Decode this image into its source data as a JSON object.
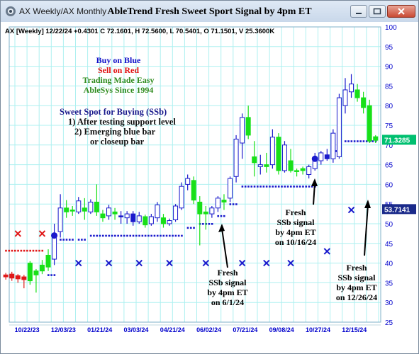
{
  "window": {
    "title": "AX Weekly/AX Monthly",
    "chart_title": "AbleTrend Fresh Sweet Sport Signal by 4pm ET"
  },
  "header_info": "AX [Weekly] 12/22/24 +0.4301 C 72.1601, H 72.5600, L 70.5401, O 71.1501, V 25.3600K",
  "legend_lines": [
    {
      "text": "Buy on Blue",
      "color": "#1010c8"
    },
    {
      "text": "Sell on Red",
      "color": "#e01010"
    },
    {
      "text": "Trading Made Easy",
      "color": "#2e8b1e"
    },
    {
      "text": "AbleSys Since 1994",
      "color": "#2e8b1e"
    }
  ],
  "sweet_spot": {
    "title": "Sweet Spot for Buying (SSb)",
    "lines": [
      "1) After testing support level",
      "2) Emerging blue bar",
      "or closeup bar"
    ]
  },
  "annotations": [
    {
      "lines": [
        "Fresh",
        "SSb signal",
        "by 4pm ET",
        "on 6/1/24"
      ],
      "arrow_to": {
        "x": 31,
        "y": 51
      }
    },
    {
      "lines": [
        "Fresh",
        "SSb signal",
        "by 4pm ET",
        "on 10/16/24"
      ],
      "arrow_to": {
        "x": 56,
        "y": 61
      }
    },
    {
      "lines": [
        "Fresh",
        "SSb signal",
        "by 4pm ET",
        "on 12/26/24"
      ],
      "arrow_to": {
        "x": 67,
        "y": 57
      }
    }
  ],
  "chart_data": {
    "type": "candlestick",
    "ylim": [
      25,
      100
    ],
    "y_ticks": [
      25,
      30,
      35,
      40,
      45,
      50,
      55,
      60,
      65,
      70,
      75,
      80,
      85,
      90,
      95,
      100
    ],
    "x_ticks": [
      {
        "x": 2,
        "label": "10/22/23"
      },
      {
        "x": 8,
        "label": "12/03/23"
      },
      {
        "x": 14,
        "label": "01/21/24"
      },
      {
        "x": 20,
        "label": "03/03/24"
      },
      {
        "x": 26,
        "label": "04/21/24"
      },
      {
        "x": 32,
        "label": "06/02/24"
      },
      {
        "x": 38,
        "label": "07/21/24"
      },
      {
        "x": 44,
        "label": "09/08/24"
      },
      {
        "x": 50,
        "label": "10/27/24"
      },
      {
        "x": 56,
        "label": "12/15/24"
      }
    ],
    "price_labels": [
      {
        "value": 71.3285,
        "text": "71.3285",
        "color": "#00c070"
      },
      {
        "value": 53.7141,
        "text": "53.7141",
        "color": "#1a2a8a"
      }
    ],
    "colors": {
      "blue": "#1a1acc",
      "green": "#18e018",
      "red": "#e01818",
      "support": "#1a1acc",
      "resistance": "#1a1acc",
      "grid": "#aef0f0",
      "axis_text": "#0000cc"
    },
    "bars": [
      {
        "x": -1.5,
        "o": 36.5,
        "h": 37.5,
        "l": 35.8,
        "c": 37.0,
        "color": "red"
      },
      {
        "x": -0.5,
        "o": 37.2,
        "h": 37.8,
        "l": 35.5,
        "c": 36.2,
        "color": "red"
      },
      {
        "x": 0.5,
        "o": 36.0,
        "h": 37.2,
        "l": 35.0,
        "c": 36.8,
        "color": "red"
      },
      {
        "x": 1.5,
        "o": 35.8,
        "h": 37.0,
        "l": 33.6,
        "c": 36.5,
        "color": "red"
      },
      {
        "x": 2.5,
        "o": 35.5,
        "h": 40.5,
        "l": 34.5,
        "c": 40.0,
        "color": "green"
      },
      {
        "x": 3.5,
        "o": 37.0,
        "h": 38.5,
        "l": 32.5,
        "c": 38.0,
        "color": "green"
      },
      {
        "x": 4.5,
        "o": 38.0,
        "h": 40.8,
        "l": 37.2,
        "c": 39.5,
        "color": "green"
      },
      {
        "x": 5.5,
        "o": 39.0,
        "h": 43.5,
        "l": 38.0,
        "c": 42.0,
        "color": "green"
      },
      {
        "x": 6.5,
        "o": 41.0,
        "h": 50.0,
        "l": 39.5,
        "c": 47.5,
        "color": "blue"
      },
      {
        "x": 7.5,
        "o": 48.0,
        "h": 57.5,
        "l": 46.5,
        "c": 54.0,
        "color": "blue"
      },
      {
        "x": 8.5,
        "o": 54.0,
        "h": 56.0,
        "l": 51.5,
        "c": 53.0,
        "color": "green"
      },
      {
        "x": 9.5,
        "o": 53.5,
        "h": 54.5,
        "l": 52.0,
        "c": 53.2,
        "color": "green"
      },
      {
        "x": 10.5,
        "o": 53.0,
        "h": 56.8,
        "l": 52.5,
        "c": 55.8,
        "color": "blue"
      },
      {
        "x": 11.5,
        "o": 54.0,
        "h": 56.5,
        "l": 51.0,
        "c": 53.2,
        "color": "green"
      },
      {
        "x": 12.5,
        "o": 53.0,
        "h": 56.2,
        "l": 52.5,
        "c": 55.5,
        "color": "blue"
      },
      {
        "x": 13.5,
        "o": 55.5,
        "h": 60.0,
        "l": 52.0,
        "c": 53.0,
        "color": "green"
      },
      {
        "x": 14.5,
        "o": 52.5,
        "h": 53.5,
        "l": 50.5,
        "c": 51.5,
        "color": "green"
      },
      {
        "x": 15.5,
        "o": 52.0,
        "h": 54.8,
        "l": 51.0,
        "c": 54.0,
        "color": "blue"
      },
      {
        "x": 16.5,
        "o": 53.0,
        "h": 54.0,
        "l": 51.0,
        "c": 52.5,
        "color": "green"
      },
      {
        "x": 17.5,
        "o": 52.0,
        "h": 53.2,
        "l": 50.0,
        "c": 52.0,
        "color": "blue"
      },
      {
        "x": 18.5,
        "o": 51.5,
        "h": 53.2,
        "l": 50.0,
        "c": 52.5,
        "color": "blue"
      },
      {
        "x": 19.5,
        "o": 52.5,
        "h": 53.2,
        "l": 49.5,
        "c": 50.5,
        "color": "blue"
      },
      {
        "x": 20.5,
        "o": 50.5,
        "h": 53.0,
        "l": 50.0,
        "c": 52.0,
        "color": "blue"
      },
      {
        "x": 21.5,
        "o": 51.8,
        "h": 52.3,
        "l": 49.0,
        "c": 49.7,
        "color": "green"
      },
      {
        "x": 22.5,
        "o": 50.0,
        "h": 52.5,
        "l": 49.5,
        "c": 51.8,
        "color": "blue"
      },
      {
        "x": 23.5,
        "o": 51.5,
        "h": 55.5,
        "l": 50.5,
        "c": 54.8,
        "color": "blue"
      },
      {
        "x": 24.5,
        "o": 51.5,
        "h": 52.5,
        "l": 49.0,
        "c": 50.0,
        "color": "green"
      },
      {
        "x": 25.5,
        "o": 50.0,
        "h": 51.3,
        "l": 49.5,
        "c": 50.8,
        "color": "blue"
      },
      {
        "x": 26.5,
        "o": 51.0,
        "h": 55.0,
        "l": 50.5,
        "c": 54.5,
        "color": "blue"
      },
      {
        "x": 27.5,
        "o": 54.0,
        "h": 60.5,
        "l": 53.5,
        "c": 59.5,
        "color": "blue"
      },
      {
        "x": 28.5,
        "o": 60.0,
        "h": 62.5,
        "l": 58.5,
        "c": 61.5,
        "color": "blue"
      },
      {
        "x": 29.5,
        "o": 61.0,
        "h": 62.0,
        "l": 55.0,
        "c": 56.0,
        "color": "green"
      },
      {
        "x": 30.5,
        "o": 55.5,
        "h": 57.0,
        "l": 44.5,
        "c": 52.5,
        "color": "green"
      },
      {
        "x": 31.5,
        "o": 53.0,
        "h": 54.5,
        "l": 48.5,
        "c": 52.5,
        "color": "green"
      },
      {
        "x": 32.5,
        "o": 52.5,
        "h": 54.5,
        "l": 51.5,
        "c": 54.0,
        "color": "blue"
      },
      {
        "x": 33.5,
        "o": 54.0,
        "h": 57.0,
        "l": 53.0,
        "c": 56.5,
        "color": "blue"
      },
      {
        "x": 34.5,
        "o": 56.0,
        "h": 57.5,
        "l": 53.5,
        "c": 55.5,
        "color": "green"
      },
      {
        "x": 35.5,
        "o": 56.5,
        "h": 62.0,
        "l": 55.5,
        "c": 61.5,
        "color": "blue"
      },
      {
        "x": 36.5,
        "o": 62.0,
        "h": 72.5,
        "l": 60.5,
        "c": 71.5,
        "color": "blue"
      },
      {
        "x": 37.5,
        "o": 70.5,
        "h": 78.0,
        "l": 66.5,
        "c": 77.0,
        "color": "blue"
      },
      {
        "x": 38.5,
        "o": 77.0,
        "h": 80.0,
        "l": 71.5,
        "c": 72.5,
        "color": "green"
      },
      {
        "x": 39.5,
        "o": 67.0,
        "h": 71.0,
        "l": 62.0,
        "c": 65.5,
        "color": "green"
      },
      {
        "x": 40.5,
        "o": 64.5,
        "h": 67.5,
        "l": 62.5,
        "c": 65.0,
        "color": "blue"
      },
      {
        "x": 41.5,
        "o": 65.0,
        "h": 68.0,
        "l": 63.0,
        "c": 64.5,
        "color": "green"
      },
      {
        "x": 42.5,
        "o": 65.0,
        "h": 74.0,
        "l": 64.0,
        "c": 72.0,
        "color": "blue"
      },
      {
        "x": 43.5,
        "o": 72.0,
        "h": 73.0,
        "l": 62.5,
        "c": 63.5,
        "color": "green"
      },
      {
        "x": 44.5,
        "o": 63.5,
        "h": 71.0,
        "l": 63.0,
        "c": 70.0,
        "color": "blue"
      },
      {
        "x": 45.5,
        "o": 66.0,
        "h": 69.0,
        "l": 63.0,
        "c": 63.5,
        "color": "green"
      },
      {
        "x": 46.5,
        "o": 63.5,
        "h": 64.0,
        "l": 62.0,
        "c": 63.3,
        "color": "green"
      },
      {
        "x": 47.5,
        "o": 63.5,
        "h": 64.5,
        "l": 62.5,
        "c": 64.0,
        "color": "green"
      },
      {
        "x": 48.5,
        "o": 62.5,
        "h": 65.0,
        "l": 61.5,
        "c": 64.5,
        "color": "blue"
      },
      {
        "x": 49.5,
        "o": 64.0,
        "h": 68.0,
        "l": 63.5,
        "c": 66.5,
        "color": "blue"
      },
      {
        "x": 50.5,
        "o": 66.0,
        "h": 68.5,
        "l": 65.0,
        "c": 68.0,
        "color": "blue"
      },
      {
        "x": 51.5,
        "o": 67.5,
        "h": 69.0,
        "l": 66.0,
        "c": 66.5,
        "color": "blue"
      },
      {
        "x": 52.5,
        "o": 66.5,
        "h": 74.0,
        "l": 65.5,
        "c": 73.0,
        "color": "blue"
      },
      {
        "x": 53.5,
        "o": 67.0,
        "h": 83.0,
        "l": 66.5,
        "c": 82.0,
        "color": "blue"
      },
      {
        "x": 54.5,
        "o": 80.0,
        "h": 87.0,
        "l": 78.0,
        "c": 84.0,
        "color": "blue"
      },
      {
        "x": 55.5,
        "o": 83.5,
        "h": 88.0,
        "l": 82.0,
        "c": 85.5,
        "color": "blue"
      },
      {
        "x": 56.5,
        "o": 84.0,
        "h": 85.5,
        "l": 81.0,
        "c": 82.0,
        "color": "green"
      },
      {
        "x": 57.5,
        "o": 82.0,
        "h": 83.5,
        "l": 78.0,
        "c": 79.5,
        "color": "green"
      },
      {
        "x": 58.5,
        "o": 80.0,
        "h": 81.5,
        "l": 70.5,
        "c": 71.0,
        "color": "green"
      },
      {
        "x": 59.5,
        "o": 71.2,
        "h": 72.5,
        "l": 70.5,
        "c": 72.1,
        "color": "green"
      }
    ],
    "red_support_dots": {
      "x0": -1.5,
      "x1": 4.5,
      "y": 43.2
    },
    "support_dots": [
      {
        "x0": 5.5,
        "x1": 6.5,
        "y": 37.0
      },
      {
        "x0": 7.5,
        "x1": 9.5,
        "y": 46.0
      },
      {
        "x0": 10.5,
        "x1": 11.5,
        "y": 46.0
      },
      {
        "x0": 12.5,
        "x1": 27.5,
        "y": 47.0
      },
      {
        "x0": 28.5,
        "x1": 29.5,
        "y": 49.0
      },
      {
        "x0": 30.5,
        "x1": 32.5,
        "y": 50.0
      },
      {
        "x0": 33.5,
        "x1": 34.5,
        "y": 52.0
      },
      {
        "x0": 35.5,
        "x1": 36.5,
        "y": 55.0
      },
      {
        "x0": 37.5,
        "x1": 49.5,
        "y": 59.5
      },
      {
        "x0": 52.5,
        "x1": 53.5,
        "y": 68.5
      },
      {
        "x0": 54.5,
        "x1": 59.5,
        "y": 71.0
      }
    ],
    "x_markers": [
      {
        "x": 0.5,
        "y": 47.5,
        "color": "red"
      },
      {
        "x": 4.5,
        "y": 47.5,
        "color": "red"
      },
      {
        "x": 10.5,
        "y": 40.0,
        "color": "blue"
      },
      {
        "x": 15.5,
        "y": 40.0,
        "color": "blue"
      },
      {
        "x": 20.5,
        "y": 40.0,
        "color": "blue"
      },
      {
        "x": 25.5,
        "y": 40.0,
        "color": "blue"
      },
      {
        "x": 31.5,
        "y": 40.0,
        "color": "blue"
      },
      {
        "x": 37.5,
        "y": 40.0,
        "color": "blue"
      },
      {
        "x": 41.5,
        "y": 40.0,
        "color": "blue"
      },
      {
        "x": 45.5,
        "y": 40.0,
        "color": "blue"
      },
      {
        "x": 51.5,
        "y": 43.0,
        "color": "blue"
      },
      {
        "x": 55.5,
        "y": 53.5,
        "color": "blue"
      }
    ],
    "signal_dots": [
      {
        "x": 6.5,
        "y": 47.0,
        "color": "blue"
      },
      {
        "x": 49.5,
        "y": 66.5,
        "color": "blue"
      }
    ]
  }
}
